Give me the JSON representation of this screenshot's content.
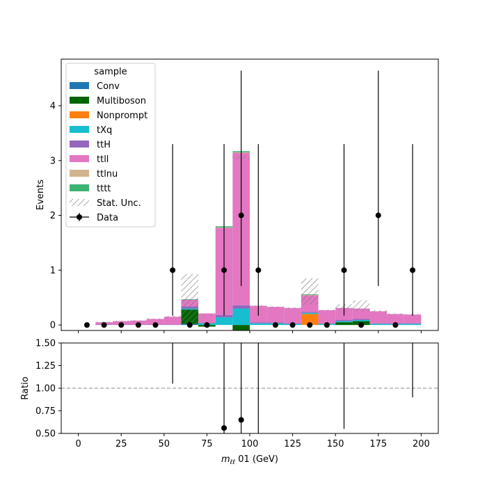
{
  "chart_data": {
    "type": "stacked-histogram-with-ratio",
    "xlabel_prefix": "m",
    "xlabel_sub": "ℓℓ",
    "xlabel_suffix": " 01 (GeV)",
    "ylabel": "Events",
    "ratio_ylabel": "Ratio",
    "xlim": [
      -10,
      210
    ],
    "ylim": [
      -0.1,
      4.85
    ],
    "ratio_ylim": [
      0.5,
      1.5
    ],
    "x_ticks": [
      0,
      25,
      50,
      75,
      100,
      125,
      150,
      175,
      200
    ],
    "y_ticks": [
      0,
      1,
      2,
      3,
      4
    ],
    "ratio_ticks": [
      "0.50",
      "0.75",
      "1.00",
      "1.25",
      "1.50"
    ],
    "ratio_tick_values": [
      0.5,
      0.75,
      1.0,
      1.25,
      1.5
    ],
    "ratio_reference": 1.0,
    "legend": {
      "title": "sample",
      "placement": "upper-left",
      "entries": [
        "Conv",
        "Multiboson",
        "Nonprompt",
        "tXq",
        "ttH",
        "ttll",
        "ttlnu",
        "tttt",
        "Stat. Unc.",
        "Data"
      ]
    },
    "bin_edges": [
      0,
      10,
      20,
      30,
      40,
      50,
      60,
      70,
      80,
      90,
      100,
      110,
      120,
      130,
      140,
      150,
      160,
      170,
      180,
      190,
      200
    ],
    "series": [
      {
        "name": "Conv",
        "color": "#1f77b4",
        "values": [
          0,
          0,
          0,
          0,
          0,
          0,
          0.02,
          0,
          0,
          0,
          0,
          0,
          0,
          0,
          0,
          0,
          0,
          0,
          0,
          0
        ]
      },
      {
        "name": "Multiboson",
        "color": "#006400",
        "values": [
          0,
          0,
          0,
          0,
          0,
          0,
          0.26,
          -0.03,
          0,
          -0.1,
          0,
          0,
          0,
          0,
          0,
          0.05,
          0.07,
          0,
          0,
          0
        ]
      },
      {
        "name": "Nonprompt",
        "color": "#ff7f0e",
        "values": [
          0,
          0,
          0,
          0,
          0,
          0,
          0,
          0,
          0,
          0,
          0,
          0,
          0,
          0.2,
          0,
          0,
          0,
          0,
          0,
          0
        ]
      },
      {
        "name": "tXq",
        "color": "#17becf",
        "values": [
          0,
          0,
          0,
          0,
          0,
          0,
          0.02,
          0.03,
          0.14,
          0.3,
          0.03,
          0.03,
          0.02,
          0.02,
          0.02,
          0.02,
          0.02,
          0.02,
          0.02,
          0.02
        ]
      },
      {
        "name": "ttH",
        "color": "#9467bd",
        "values": [
          0,
          0.01,
          0.01,
          0.01,
          0.01,
          0.01,
          0.04,
          0.01,
          0.04,
          0.06,
          0.02,
          0.02,
          0.01,
          0.02,
          0.01,
          0.02,
          0.02,
          0.01,
          0.01,
          0.01
        ]
      },
      {
        "name": "ttll",
        "color": "#e377c2",
        "values": [
          0,
          0.04,
          0.06,
          0.07,
          0.1,
          0.14,
          0.12,
          0.17,
          1.59,
          2.78,
          0.3,
          0.28,
          0.28,
          0.3,
          0.24,
          0.22,
          0.19,
          0.22,
          0.17,
          0.16
        ]
      },
      {
        "name": "ttlnu",
        "color": "#d2b48c",
        "values": [
          0,
          0,
          0,
          0,
          0,
          0,
          0,
          0,
          0.01,
          0.01,
          0,
          0,
          0,
          0.01,
          0,
          0,
          0,
          0,
          0,
          0
        ]
      },
      {
        "name": "tttt",
        "color": "#3cb371",
        "values": [
          0,
          0,
          0,
          0,
          0,
          0,
          0.01,
          0,
          0.02,
          0.02,
          0,
          0,
          0,
          0.01,
          0,
          0,
          0,
          0,
          0,
          0
        ]
      }
    ],
    "stat_unc": {
      "name": "Stat. Unc.",
      "low": [
        0,
        0.04,
        0.06,
        0.07,
        0.1,
        0.14,
        0.0,
        0.17,
        1.78,
        3.03,
        0.34,
        0.32,
        0.3,
        0.37,
        0.26,
        0.28,
        0.25,
        0.24,
        0.19,
        0.18
      ],
      "high": [
        0,
        0.06,
        0.08,
        0.09,
        0.12,
        0.17,
        0.93,
        0.19,
        1.8,
        3.08,
        0.36,
        0.34,
        0.32,
        0.85,
        0.28,
        0.38,
        0.45,
        0.27,
        0.21,
        0.2
      ]
    },
    "data": {
      "name": "Data",
      "x": [
        5,
        15,
        25,
        35,
        45,
        55,
        65,
        75,
        85,
        95,
        105,
        115,
        125,
        135,
        145,
        155,
        165,
        175,
        185,
        195
      ],
      "y": [
        0,
        0,
        0,
        0,
        0,
        1,
        0,
        0,
        1,
        2,
        1,
        0,
        0,
        0,
        0,
        1,
        0,
        2,
        0,
        1
      ],
      "err_low": [
        0,
        0,
        0,
        0,
        0,
        0.83,
        0,
        0,
        0.83,
        1.29,
        0.83,
        0,
        0,
        0,
        0,
        0.83,
        0,
        1.29,
        0,
        0.83
      ],
      "err_high": [
        0,
        0,
        0,
        0,
        0,
        2.3,
        0,
        0,
        2.3,
        2.64,
        2.3,
        0,
        0,
        0,
        0,
        2.3,
        0,
        2.64,
        0,
        2.3
      ]
    },
    "ratio": {
      "points": [
        {
          "x": 85,
          "y": 0.56,
          "low": 0.0,
          "high": 1.5
        },
        {
          "x": 95,
          "y": 0.65,
          "low": 0.0,
          "high": 1.5
        }
      ],
      "bars": [
        {
          "x": 55,
          "low": 1.05,
          "high": 1.5
        },
        {
          "x": 105,
          "low": 0.5,
          "high": 1.5
        },
        {
          "x": 155,
          "low": 0.55,
          "high": 1.5
        },
        {
          "x": 195,
          "low": 0.9,
          "high": 1.5
        }
      ]
    }
  }
}
